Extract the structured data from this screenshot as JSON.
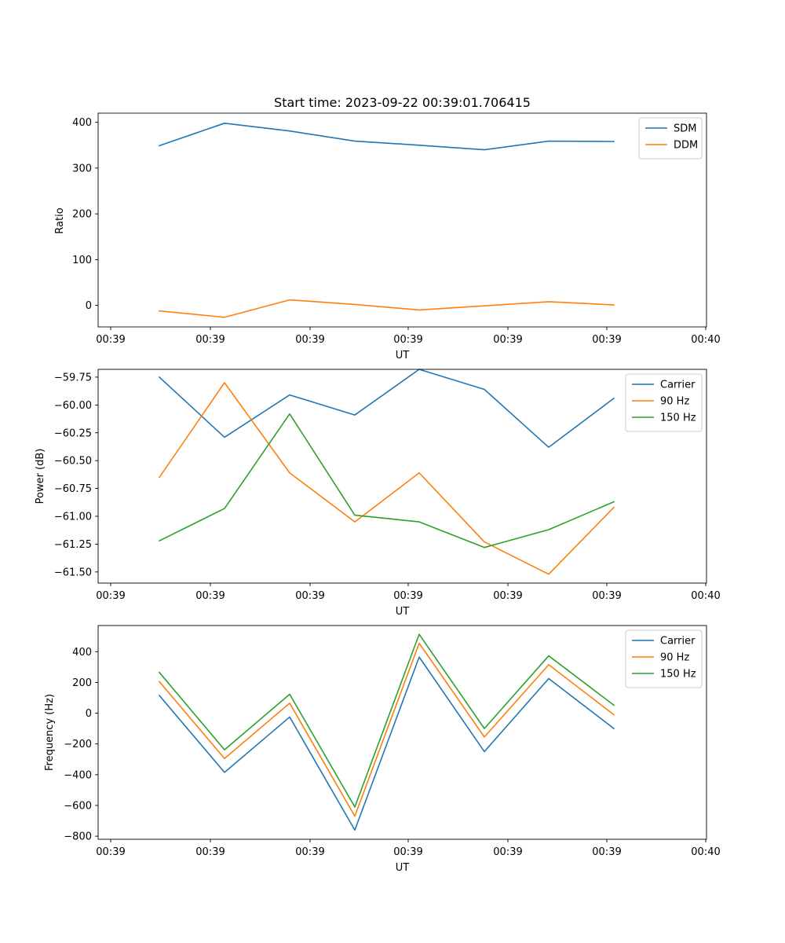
{
  "chart_data": [
    {
      "type": "line",
      "title": "Start time: 2023-09-22 00:39:01.706415",
      "xlabel": "UT",
      "ylabel": "Ratio",
      "x_tick_labels": [
        "00:39",
        "00:39",
        "00:39",
        "00:39",
        "00:39",
        "00:39",
        "00:40"
      ],
      "ylim": [
        -47,
        420
      ],
      "yticks": [
        0,
        100,
        200,
        300,
        400
      ],
      "ytick_labels": [
        "0",
        "100",
        "200",
        "300",
        "400"
      ],
      "legend_position": "top-right",
      "series": [
        {
          "name": "SDM",
          "color": "#1f77b4",
          "values": [
            349,
            398,
            381,
            359,
            350,
            340,
            359,
            358
          ]
        },
        {
          "name": "DDM",
          "color": "#ff7f0e",
          "values": [
            -12,
            -26,
            12,
            2,
            -10,
            -1,
            8,
            1
          ]
        }
      ]
    },
    {
      "type": "line",
      "title": "",
      "xlabel": "UT",
      "ylabel": "Power (dB)",
      "x_tick_labels": [
        "00:39",
        "00:39",
        "00:39",
        "00:39",
        "00:39",
        "00:39",
        "00:40"
      ],
      "ylim": [
        -61.6,
        -59.68
      ],
      "yticks": [
        -59.75,
        -60.0,
        -60.25,
        -60.5,
        -60.75,
        -61.0,
        -61.25,
        -61.5
      ],
      "ytick_labels": [
        "−59.75",
        "−60.00",
        "−60.25",
        "−60.50",
        "−60.75",
        "−61.00",
        "−61.25",
        "−61.50"
      ],
      "legend_position": "top-right",
      "series": [
        {
          "name": "Carrier",
          "color": "#1f77b4",
          "values": [
            -59.75,
            -60.29,
            -59.91,
            -60.09,
            -59.68,
            -59.86,
            -60.38,
            -59.94
          ]
        },
        {
          "name": "90 Hz",
          "color": "#ff7f0e",
          "values": [
            -60.65,
            -59.8,
            -60.61,
            -61.05,
            -60.61,
            -61.23,
            -61.52,
            -60.92
          ]
        },
        {
          "name": "150 Hz",
          "color": "#2ca02c",
          "values": [
            -61.22,
            -60.93,
            -60.08,
            -60.99,
            -61.05,
            -61.28,
            -61.12,
            -60.87
          ]
        }
      ]
    },
    {
      "type": "line",
      "title": "",
      "xlabel": "UT",
      "ylabel": "Frequency (Hz)",
      "x_tick_labels": [
        "00:39",
        "00:39",
        "00:39",
        "00:39",
        "00:39",
        "00:39",
        "00:40"
      ],
      "ylim": [
        -820,
        570
      ],
      "yticks": [
        -800,
        -600,
        -400,
        -200,
        0,
        200,
        400
      ],
      "ytick_labels": [
        "−800",
        "−600",
        "−400",
        "−200",
        "0",
        "200",
        "400"
      ],
      "legend_position": "top-right",
      "series": [
        {
          "name": "Carrier",
          "color": "#1f77b4",
          "values": [
            115,
            -385,
            -25,
            -760,
            365,
            -250,
            225,
            -100
          ]
        },
        {
          "name": "90 Hz",
          "color": "#ff7f0e",
          "values": [
            205,
            -295,
            65,
            -670,
            455,
            -155,
            315,
            -10
          ]
        },
        {
          "name": "150 Hz",
          "color": "#2ca02c",
          "values": [
            265,
            -238,
            123,
            -610,
            513,
            -100,
            373,
            52
          ]
        }
      ]
    }
  ]
}
